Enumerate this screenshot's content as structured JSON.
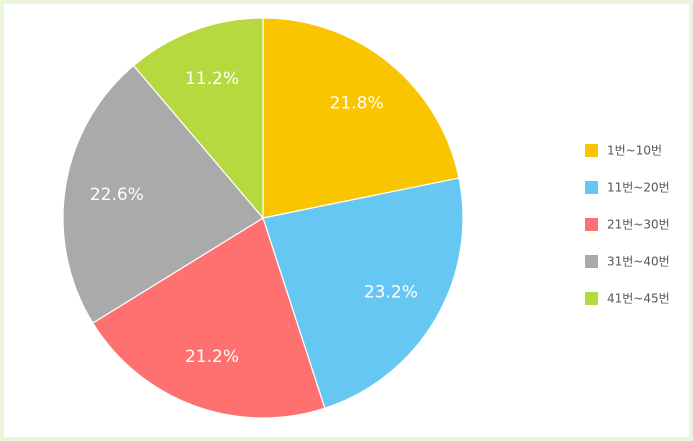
{
  "chart_data": {
    "type": "pie",
    "categories": [
      "1번~10번",
      "11번~20번",
      "21번~30번",
      "31번~40번",
      "41번~45번"
    ],
    "values": [
      21.8,
      23.2,
      21.2,
      22.6,
      11.2
    ],
    "value_labels": [
      "21.8%",
      "23.2%",
      "21.2%",
      "22.6%",
      "11.2%"
    ],
    "colors": [
      "#f9c400",
      "#66c8f2",
      "#ff7070",
      "#aaaaaa",
      "#b5d93f"
    ],
    "legend": "right"
  }
}
